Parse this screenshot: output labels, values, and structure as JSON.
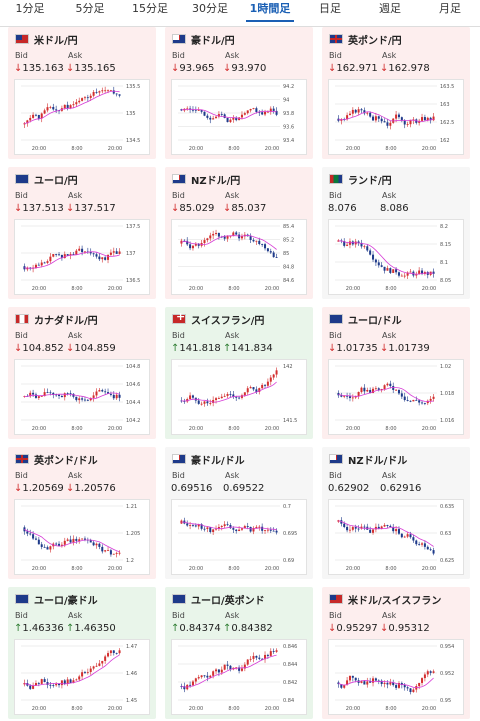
{
  "tabs": [
    {
      "label": "1分足"
    },
    {
      "label": "5分足"
    },
    {
      "label": "15分足"
    },
    {
      "label": "30分足"
    },
    {
      "label": "1時間足"
    },
    {
      "label": "日足"
    },
    {
      "label": "週足"
    },
    {
      "label": "月足"
    }
  ],
  "active_tab": "1時間足",
  "labels": {
    "bid": "Bid",
    "ask": "Ask"
  },
  "cards": [
    {
      "pair": "米ドル/円",
      "flag": "us",
      "trend": "down",
      "bid": "135.163",
      "ask": "135.165",
      "chart": {
        "yticks": [
          "135.5",
          "135",
          "134.5"
        ],
        "xticks": [
          "20:00",
          "8:00",
          "20:00"
        ],
        "seed": 1,
        "drift": 0.6,
        "ma": "up"
      }
    },
    {
      "pair": "豪ドル/円",
      "flag": "au",
      "trend": "down",
      "bid": "93.965",
      "ask": "93.970",
      "chart": {
        "yticks": [
          "94.2",
          "94",
          "93.8",
          "93.6",
          "93.4"
        ],
        "xticks": [
          "20:00",
          "8:00",
          "20:00"
        ],
        "seed": 2,
        "drift": -0.2,
        "ma": "down"
      }
    },
    {
      "pair": "英ポンド/円",
      "flag": "gb",
      "trend": "down",
      "bid": "162.971",
      "ask": "162.978",
      "chart": {
        "yticks": [
          "163.5",
          "163",
          "162.5",
          "162"
        ],
        "xticks": [
          "20:00",
          "8:00",
          "20:00"
        ],
        "seed": 3,
        "drift": 0.3,
        "ma": "up"
      }
    },
    {
      "pair": "ユーロ/円",
      "flag": "eu",
      "trend": "down",
      "bid": "137.513",
      "ask": "137.517",
      "chart": {
        "yticks": [
          "137.5",
          "137",
          "136.5"
        ],
        "xticks": [
          "20:00",
          "8:00",
          "20:00"
        ],
        "seed": 4,
        "drift": 0.7,
        "ma": "up"
      }
    },
    {
      "pair": "NZドル/円",
      "flag": "nz",
      "trend": "down",
      "bid": "85.029",
      "ask": "85.037",
      "chart": {
        "yticks": [
          "85.4",
          "85.2",
          "85",
          "84.8",
          "84.6"
        ],
        "xticks": [
          "20:00",
          "8:00",
          "20:00"
        ],
        "seed": 5,
        "drift": -0.5,
        "ma": "down"
      }
    },
    {
      "pair": "ランド/円",
      "flag": "za",
      "trend": "flat",
      "bid": "8.076",
      "ask": "8.086",
      "chart": {
        "yticks": [
          "8.2",
          "8.15",
          "8.1",
          "8.05"
        ],
        "xticks": [
          "20:00",
          "8:00",
          "20:00"
        ],
        "seed": 6,
        "drift": -0.6,
        "ma": "down"
      }
    },
    {
      "pair": "カナダドル/円",
      "flag": "ca",
      "trend": "down",
      "bid": "104.852",
      "ask": "104.859",
      "chart": {
        "yticks": [
          "104.8",
          "104.6",
          "104.4",
          "104.2"
        ],
        "xticks": [
          "20:00",
          "8:00",
          "20:00"
        ],
        "seed": 7,
        "drift": 0.2,
        "ma": "up"
      }
    },
    {
      "pair": "スイスフラン/円",
      "flag": "ch",
      "trend": "up",
      "bid": "141.818",
      "ask": "141.834",
      "chart": {
        "yticks": [
          "142",
          "141.5"
        ],
        "xticks": [
          "20:00",
          "8:00",
          "20:00"
        ],
        "seed": 8,
        "drift": 0.4,
        "ma": "up"
      }
    },
    {
      "pair": "ユーロ/ドル",
      "flag": "eu",
      "trend": "down",
      "bid": "1.01735",
      "ask": "1.01739",
      "chart": {
        "yticks": [
          "1.02",
          "1.018",
          "1.016"
        ],
        "xticks": [
          "20:00",
          "8:00",
          "20:00"
        ],
        "seed": 9,
        "drift": 0.0,
        "ma": "flat"
      }
    },
    {
      "pair": "英ポンド/ドル",
      "flag": "gb",
      "trend": "down",
      "bid": "1.20569",
      "ask": "1.20576",
      "chart": {
        "yticks": [
          "1.21",
          "1.205",
          "1.2"
        ],
        "xticks": [
          "20:00",
          "8:00",
          "20:00"
        ],
        "seed": 10,
        "drift": -0.3,
        "ma": "down"
      }
    },
    {
      "pair": "豪ドル/ドル",
      "flag": "au",
      "trend": "flat",
      "bid": "0.69516",
      "ask": "0.69522",
      "chart": {
        "yticks": [
          "0.7",
          "0.695",
          "0.69"
        ],
        "xticks": [
          "20:00",
          "8:00",
          "20:00"
        ],
        "seed": 11,
        "drift": -0.5,
        "ma": "down"
      }
    },
    {
      "pair": "NZドル/ドル",
      "flag": "nz",
      "trend": "flat",
      "bid": "0.62902",
      "ask": "0.62916",
      "chart": {
        "yticks": [
          "0.635",
          "0.63",
          "0.625"
        ],
        "xticks": [
          "20:00",
          "8:00",
          "20:00"
        ],
        "seed": 12,
        "drift": -0.6,
        "ma": "down"
      }
    },
    {
      "pair": "ユーロ/豪ドル",
      "flag": "eu",
      "trend": "up",
      "bid": "1.46336",
      "ask": "1.46350",
      "chart": {
        "yticks": [
          "1.47",
          "1.46",
          "1.45"
        ],
        "xticks": [
          "20:00",
          "8:00",
          "20:00"
        ],
        "seed": 13,
        "drift": 0.6,
        "ma": "up"
      }
    },
    {
      "pair": "ユーロ/英ポンド",
      "flag": "eu",
      "trend": "up",
      "bid": "0.84374",
      "ask": "0.84382",
      "chart": {
        "yticks": [
          "0.846",
          "0.844",
          "0.842",
          "0.84"
        ],
        "xticks": [
          "20:00",
          "8:00",
          "20:00"
        ],
        "seed": 14,
        "drift": 0.7,
        "ma": "up"
      }
    },
    {
      "pair": "米ドル/スイスフラン",
      "flag": "us",
      "trend": "down",
      "bid": "0.95297",
      "ask": "0.95312",
      "chart": {
        "yticks": [
          "0.954",
          "0.952",
          "0.95"
        ],
        "xticks": [
          "20:00",
          "8:00",
          "20:00"
        ],
        "seed": 15,
        "drift": 0.5,
        "ma": "up"
      }
    }
  ]
}
